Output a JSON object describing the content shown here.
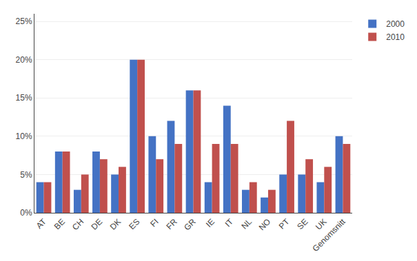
{
  "chart_data": {
    "type": "bar",
    "categories": [
      "AT",
      "BE",
      "CH",
      "DE",
      "DK",
      "ES",
      "FI",
      "FR",
      "GR",
      "IE",
      "IT",
      "NL",
      "NO",
      "PT",
      "SE",
      "UK",
      "Genomsnitt"
    ],
    "series": [
      {
        "name": "2000",
        "color": "#4472C4",
        "values": [
          0.04,
          0.08,
          0.03,
          0.08,
          0.05,
          0.2,
          0.1,
          0.12,
          0.16,
          0.04,
          0.14,
          0.03,
          0.02,
          0.05,
          0.05,
          0.04,
          0.1
        ]
      },
      {
        "name": "2010",
        "color": "#C0504D",
        "values": [
          0.04,
          0.08,
          0.05,
          0.07,
          0.06,
          0.2,
          0.07,
          0.09,
          0.16,
          0.09,
          0.09,
          0.04,
          0.03,
          0.12,
          0.07,
          0.06,
          0.09
        ]
      }
    ],
    "ylim": [
      0,
      0.26
    ],
    "yticks": [
      {
        "value": 0.0,
        "label": "0%"
      },
      {
        "value": 0.05,
        "label": "5%"
      },
      {
        "value": 0.1,
        "label": "10%"
      },
      {
        "value": 0.15,
        "label": "15%"
      },
      {
        "value": 0.2,
        "label": "20%"
      },
      {
        "value": 0.25,
        "label": "25%"
      }
    ],
    "grid": true,
    "legend": "upper right"
  }
}
